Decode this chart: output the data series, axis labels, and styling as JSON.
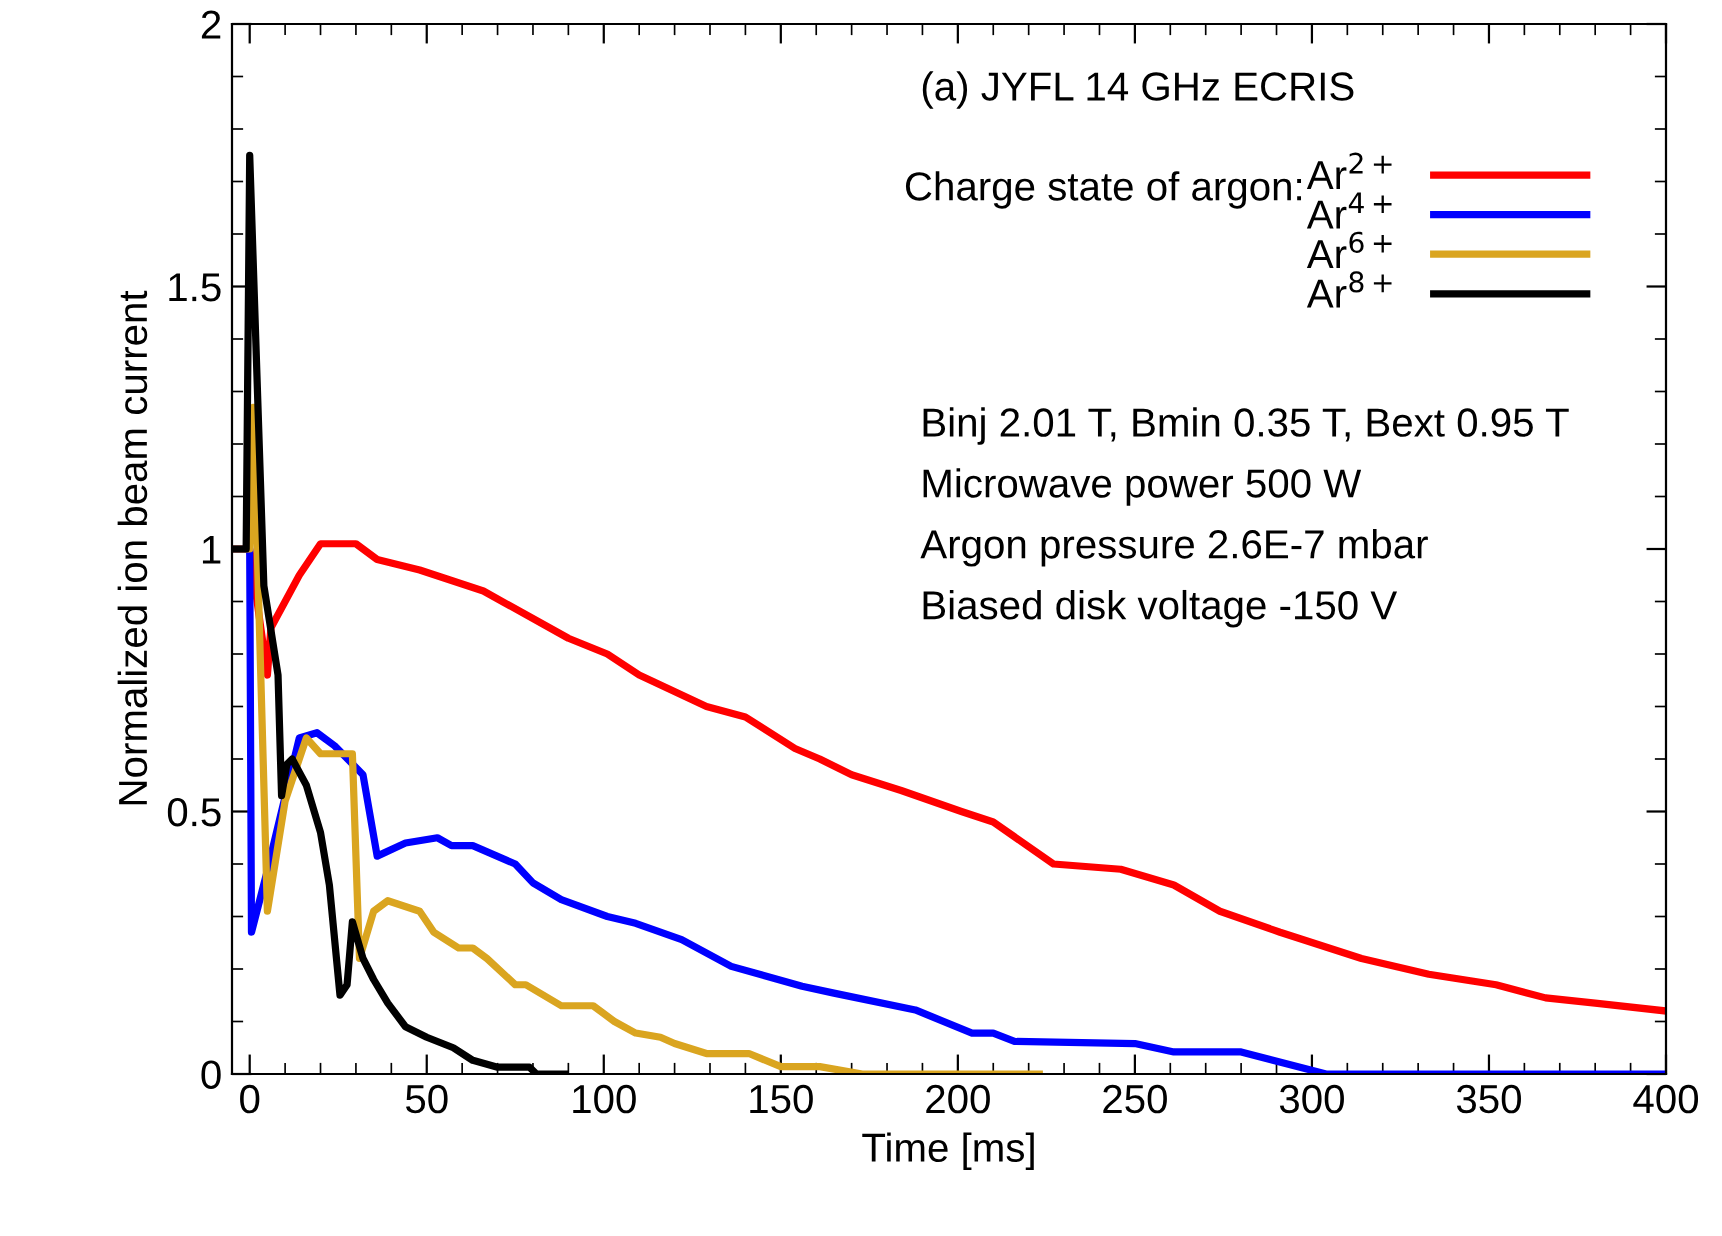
{
  "chart_data": {
    "type": "line",
    "xlabel": "Time [ms]",
    "ylabel": "Normalized ion beam current",
    "legend_title": "Charge state of argon:",
    "xlim": [
      -5,
      400
    ],
    "xticks": [
      0,
      50,
      100,
      150,
      200,
      250,
      300,
      350,
      400
    ],
    "ylim": [
      0,
      2
    ],
    "yticks": [
      0,
      0.5,
      1,
      1.5,
      2
    ],
    "grid": false,
    "legend": "top right",
    "marker": "none",
    "line_style": "solid",
    "annotations": [
      "(a) JYFL 14 GHz ECRIS",
      "Binj 2.01 T, Bmin 0.35 T, Bext 0.95 T",
      "Microwave power 500 W",
      "Argon pressure 2.6E-7 mbar",
      "Biased disk voltage -150 V"
    ],
    "series": [
      {
        "name": "Ar$^{2+}$",
        "color": "#ff0000",
        "x": [
          -5,
          0,
          5,
          6,
          14,
          20,
          30,
          36,
          48,
          66,
          90,
          101,
          110,
          129,
          140,
          154,
          161,
          170,
          184,
          201,
          210,
          227,
          246,
          261,
          274,
          291,
          314,
          333,
          352,
          366,
          380,
          400
        ],
        "values": [
          1.0,
          1.0,
          0.76,
          0.85,
          0.95,
          1.01,
          1.01,
          0.98,
          0.96,
          0.92,
          0.83,
          0.8,
          0.76,
          0.7,
          0.68,
          0.62,
          0.6,
          0.57,
          0.54,
          0.5,
          0.48,
          0.4,
          0.39,
          0.36,
          0.31,
          0.27,
          0.22,
          0.19,
          0.17,
          0.145,
          0.135,
          0.12
        ]
      },
      {
        "name": "Ar$^{4+}$",
        "color": "#0000ff",
        "x": [
          -5,
          0,
          0.5,
          4.7,
          14,
          19,
          24,
          32,
          36,
          44,
          53,
          57,
          63,
          75,
          80,
          88,
          101,
          109,
          122,
          136,
          156,
          165,
          188,
          204,
          210,
          216,
          250,
          261,
          280,
          304,
          400
        ],
        "values": [
          1.0,
          1.0,
          0.27,
          0.38,
          0.64,
          0.65,
          0.625,
          0.57,
          0.415,
          0.44,
          0.45,
          0.435,
          0.435,
          0.4,
          0.364,
          0.332,
          0.3,
          0.287,
          0.256,
          0.205,
          0.167,
          0.154,
          0.122,
          0.078,
          0.078,
          0.062,
          0.058,
          0.042,
          0.042,
          0.0,
          0.0
        ]
      },
      {
        "name": "Ar$^{6+}$",
        "color": "#daa520",
        "x": [
          -5,
          0,
          1,
          5,
          10,
          16,
          20,
          29,
          31,
          35,
          39,
          48,
          52,
          59,
          63,
          67,
          75,
          78,
          88,
          97,
          103,
          109,
          116,
          120,
          129,
          141,
          150,
          161,
          173,
          223
        ],
        "values": [
          1.0,
          1.0,
          1.27,
          0.31,
          0.52,
          0.64,
          0.61,
          0.61,
          0.22,
          0.31,
          0.33,
          0.31,
          0.27,
          0.24,
          0.24,
          0.22,
          0.17,
          0.17,
          0.13,
          0.13,
          0.1,
          0.078,
          0.07,
          0.058,
          0.039,
          0.039,
          0.014,
          0.014,
          0.0,
          0.0
        ]
      },
      {
        "name": "Ar$^{8+}$",
        "color": "#000000",
        "x": [
          -5,
          -1,
          0,
          4,
          8,
          9,
          10.5,
          12,
          16,
          20,
          22.5,
          25.5,
          27.5,
          29,
          32,
          35,
          39,
          44,
          50,
          57.5,
          63,
          70,
          79,
          81,
          89
        ],
        "values": [
          1.0,
          1.0,
          1.75,
          0.93,
          0.76,
          0.53,
          0.59,
          0.6,
          0.55,
          0.46,
          0.36,
          0.15,
          0.17,
          0.29,
          0.22,
          0.18,
          0.135,
          0.09,
          0.07,
          0.05,
          0.026,
          0.013,
          0.013,
          0.0,
          0.0
        ]
      }
    ]
  }
}
